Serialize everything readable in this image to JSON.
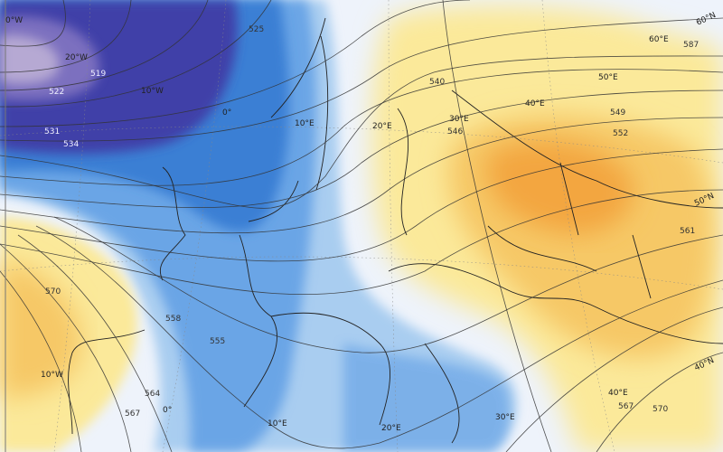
{
  "map": {
    "colors": {
      "background": "#eef3fb",
      "low_core": "#a99ac8",
      "low_deep": "#3f3fa8",
      "trough_blue": "#3b7fd4",
      "light_blue": "#a9cdf0",
      "ridge_yellow": "#fbe99a",
      "ridge_orange": "#f3a640",
      "highlight_contour": "#1a2fd6"
    },
    "contour_labels": [
      "519",
      "522",
      "525",
      "531",
      "534",
      "540",
      "546",
      "549",
      "552",
      "555",
      "558",
      "561",
      "564",
      "567",
      "570",
      "587",
      "567",
      "570"
    ],
    "graticule_labels": {
      "top": [
        "0°W",
        "20°W",
        "10°W",
        "0°",
        "10°E",
        "20°E",
        "30°E",
        "40°E",
        "50°E",
        "60°E"
      ],
      "lat": [
        "60°N",
        "50°N",
        "40°N"
      ],
      "bottom": [
        "10°W",
        "0°",
        "10°E",
        "20°E",
        "30°E",
        "40°E"
      ]
    }
  }
}
